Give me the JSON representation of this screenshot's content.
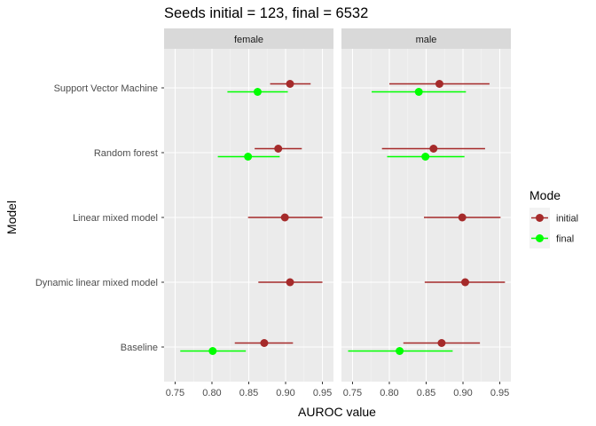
{
  "chart_data": {
    "type": "forest",
    "title": "Seeds initial = 123, final = 6532",
    "xlabel": "AUROC value",
    "ylabel": "Model",
    "xlim": [
      0.735,
      0.965
    ],
    "x_ticks": [
      "0.75",
      "0.80",
      "0.85",
      "0.90",
      "0.95"
    ],
    "x_tick_values": [
      0.75,
      0.8,
      0.85,
      0.9,
      0.95
    ],
    "models": [
      "Support Vector Machine",
      "Random forest",
      "Linear mixed model",
      "Dynamic linear mixed model",
      "Baseline"
    ],
    "legend": {
      "title": "Mode",
      "position": "right",
      "entries": [
        {
          "name": "initial",
          "color": "#A52A2A"
        },
        {
          "name": "final",
          "color": "#00FF00"
        }
      ]
    },
    "panels": [
      {
        "name": "female",
        "rows": [
          {
            "model": "Support Vector Machine",
            "initial": {
              "estimate": 0.906,
              "lower": 0.879,
              "upper": 0.934
            },
            "final": {
              "estimate": 0.862,
              "lower": 0.821,
              "upper": 0.903
            }
          },
          {
            "model": "Random forest",
            "initial": {
              "estimate": 0.89,
              "lower": 0.858,
              "upper": 0.922
            },
            "final": {
              "estimate": 0.849,
              "lower": 0.808,
              "upper": 0.892
            }
          },
          {
            "model": "Linear mixed model",
            "initial": {
              "estimate": 0.899,
              "lower": 0.849,
              "upper": 0.95
            },
            "final": null
          },
          {
            "model": "Dynamic linear mixed model",
            "initial": {
              "estimate": 0.906,
              "lower": 0.863,
              "upper": 0.95
            },
            "final": null
          },
          {
            "model": "Baseline",
            "initial": {
              "estimate": 0.871,
              "lower": 0.831,
              "upper": 0.91
            },
            "final": {
              "estimate": 0.801,
              "lower": 0.757,
              "upper": 0.846
            }
          }
        ]
      },
      {
        "name": "male",
        "rows": [
          {
            "model": "Support Vector Machine",
            "initial": {
              "estimate": 0.868,
              "lower": 0.8,
              "upper": 0.936
            },
            "final": {
              "estimate": 0.84,
              "lower": 0.776,
              "upper": 0.904
            }
          },
          {
            "model": "Random forest",
            "initial": {
              "estimate": 0.86,
              "lower": 0.79,
              "upper": 0.93
            },
            "final": {
              "estimate": 0.849,
              "lower": 0.797,
              "upper": 0.902
            }
          },
          {
            "model": "Linear mixed model",
            "initial": {
              "estimate": 0.899,
              "lower": 0.847,
              "upper": 0.951
            },
            "final": null
          },
          {
            "model": "Dynamic linear mixed model",
            "initial": {
              "estimate": 0.903,
              "lower": 0.848,
              "upper": 0.957
            },
            "final": null
          },
          {
            "model": "Baseline",
            "initial": {
              "estimate": 0.871,
              "lower": 0.819,
              "upper": 0.923
            },
            "final": {
              "estimate": 0.814,
              "lower": 0.744,
              "upper": 0.886
            }
          }
        ]
      }
    ],
    "grid": true,
    "colors": {
      "panel_bg": "#EBEBEB",
      "strip_bg": "#D9D9D9",
      "grid_major": "#FFFFFF",
      "text_dark": "#1A1A1A",
      "text_axis": "#4D4D4D"
    }
  }
}
